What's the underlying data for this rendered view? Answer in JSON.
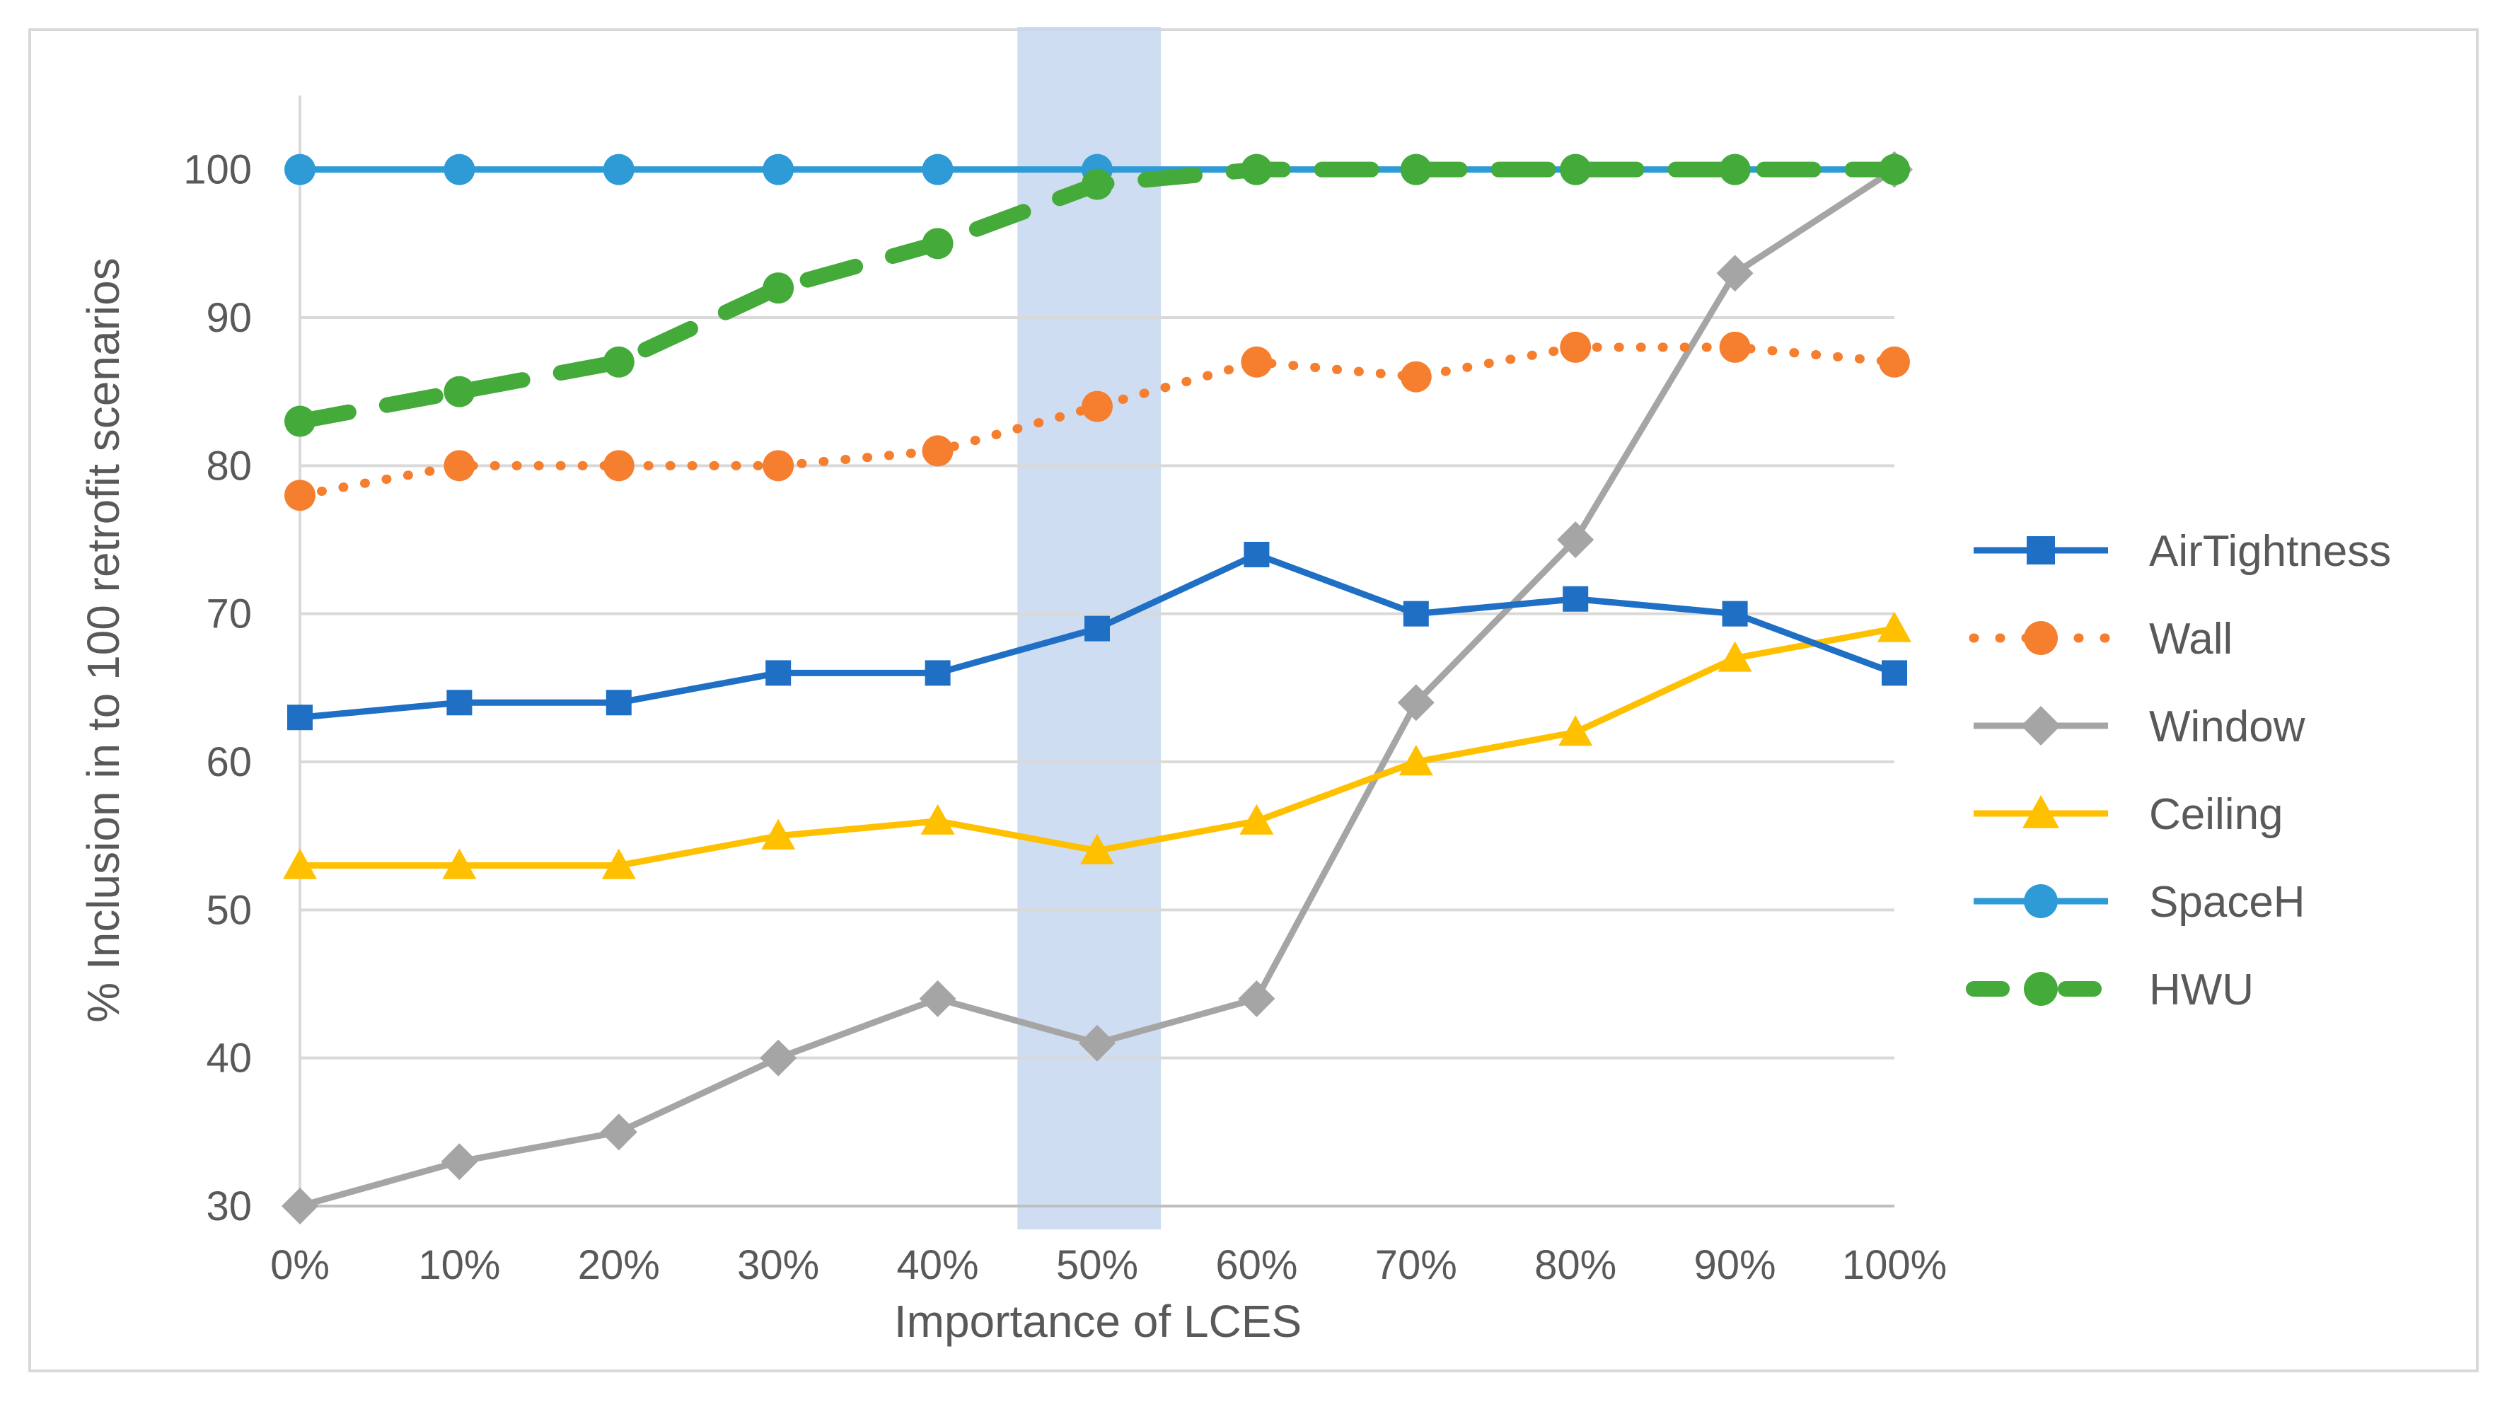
{
  "chart_data": {
    "type": "line",
    "title": "",
    "xlabel": "Importance of LCES",
    "ylabel": "% Inclusion in to 100 retrofit scenarios",
    "categories": [
      "0%",
      "10%",
      "20%",
      "30%",
      "40%",
      "50%",
      "60%",
      "70%",
      "80%",
      "90%",
      "100%"
    ],
    "ylim": [
      30,
      105
    ],
    "yticks": [
      30,
      40,
      50,
      60,
      70,
      80,
      90,
      100
    ],
    "grid": true,
    "legend_position": "right",
    "highlight_band": {
      "from_category": "45%",
      "to_category": "54%",
      "color": "#c5d7ef"
    },
    "series": [
      {
        "name": "AirTightness",
        "values": [
          63,
          64,
          64,
          66,
          66,
          69,
          74,
          70,
          71,
          70,
          66
        ],
        "color": "#1f6fc5",
        "marker": "square",
        "dash": "solid"
      },
      {
        "name": "Wall",
        "values": [
          78,
          80,
          80,
          80,
          81,
          84,
          87,
          86,
          88,
          88,
          87
        ],
        "color": "#f57e2f",
        "marker": "circle",
        "dash": "dot"
      },
      {
        "name": "Window",
        "values": [
          30,
          33,
          35,
          40,
          44,
          41,
          44,
          64,
          75,
          93,
          100
        ],
        "color": "#a5a5a5",
        "marker": "diamond",
        "dash": "solid"
      },
      {
        "name": "Ceiling",
        "values": [
          53,
          53,
          53,
          55,
          56,
          54,
          56,
          60,
          62,
          67,
          69
        ],
        "color": "#ffc000",
        "marker": "triangle",
        "dash": "solid"
      },
      {
        "name": "SpaceH",
        "values": [
          100,
          100,
          100,
          100,
          100,
          100,
          100,
          100,
          100,
          100,
          100
        ],
        "color": "#2e9bd6",
        "marker": "circle",
        "dash": "solid"
      },
      {
        "name": "HWU",
        "values": [
          83,
          85,
          87,
          92,
          95,
          99,
          100,
          100,
          100,
          100,
          100
        ],
        "color": "#44aa3a",
        "marker": "circle",
        "dash": "dash"
      }
    ]
  }
}
